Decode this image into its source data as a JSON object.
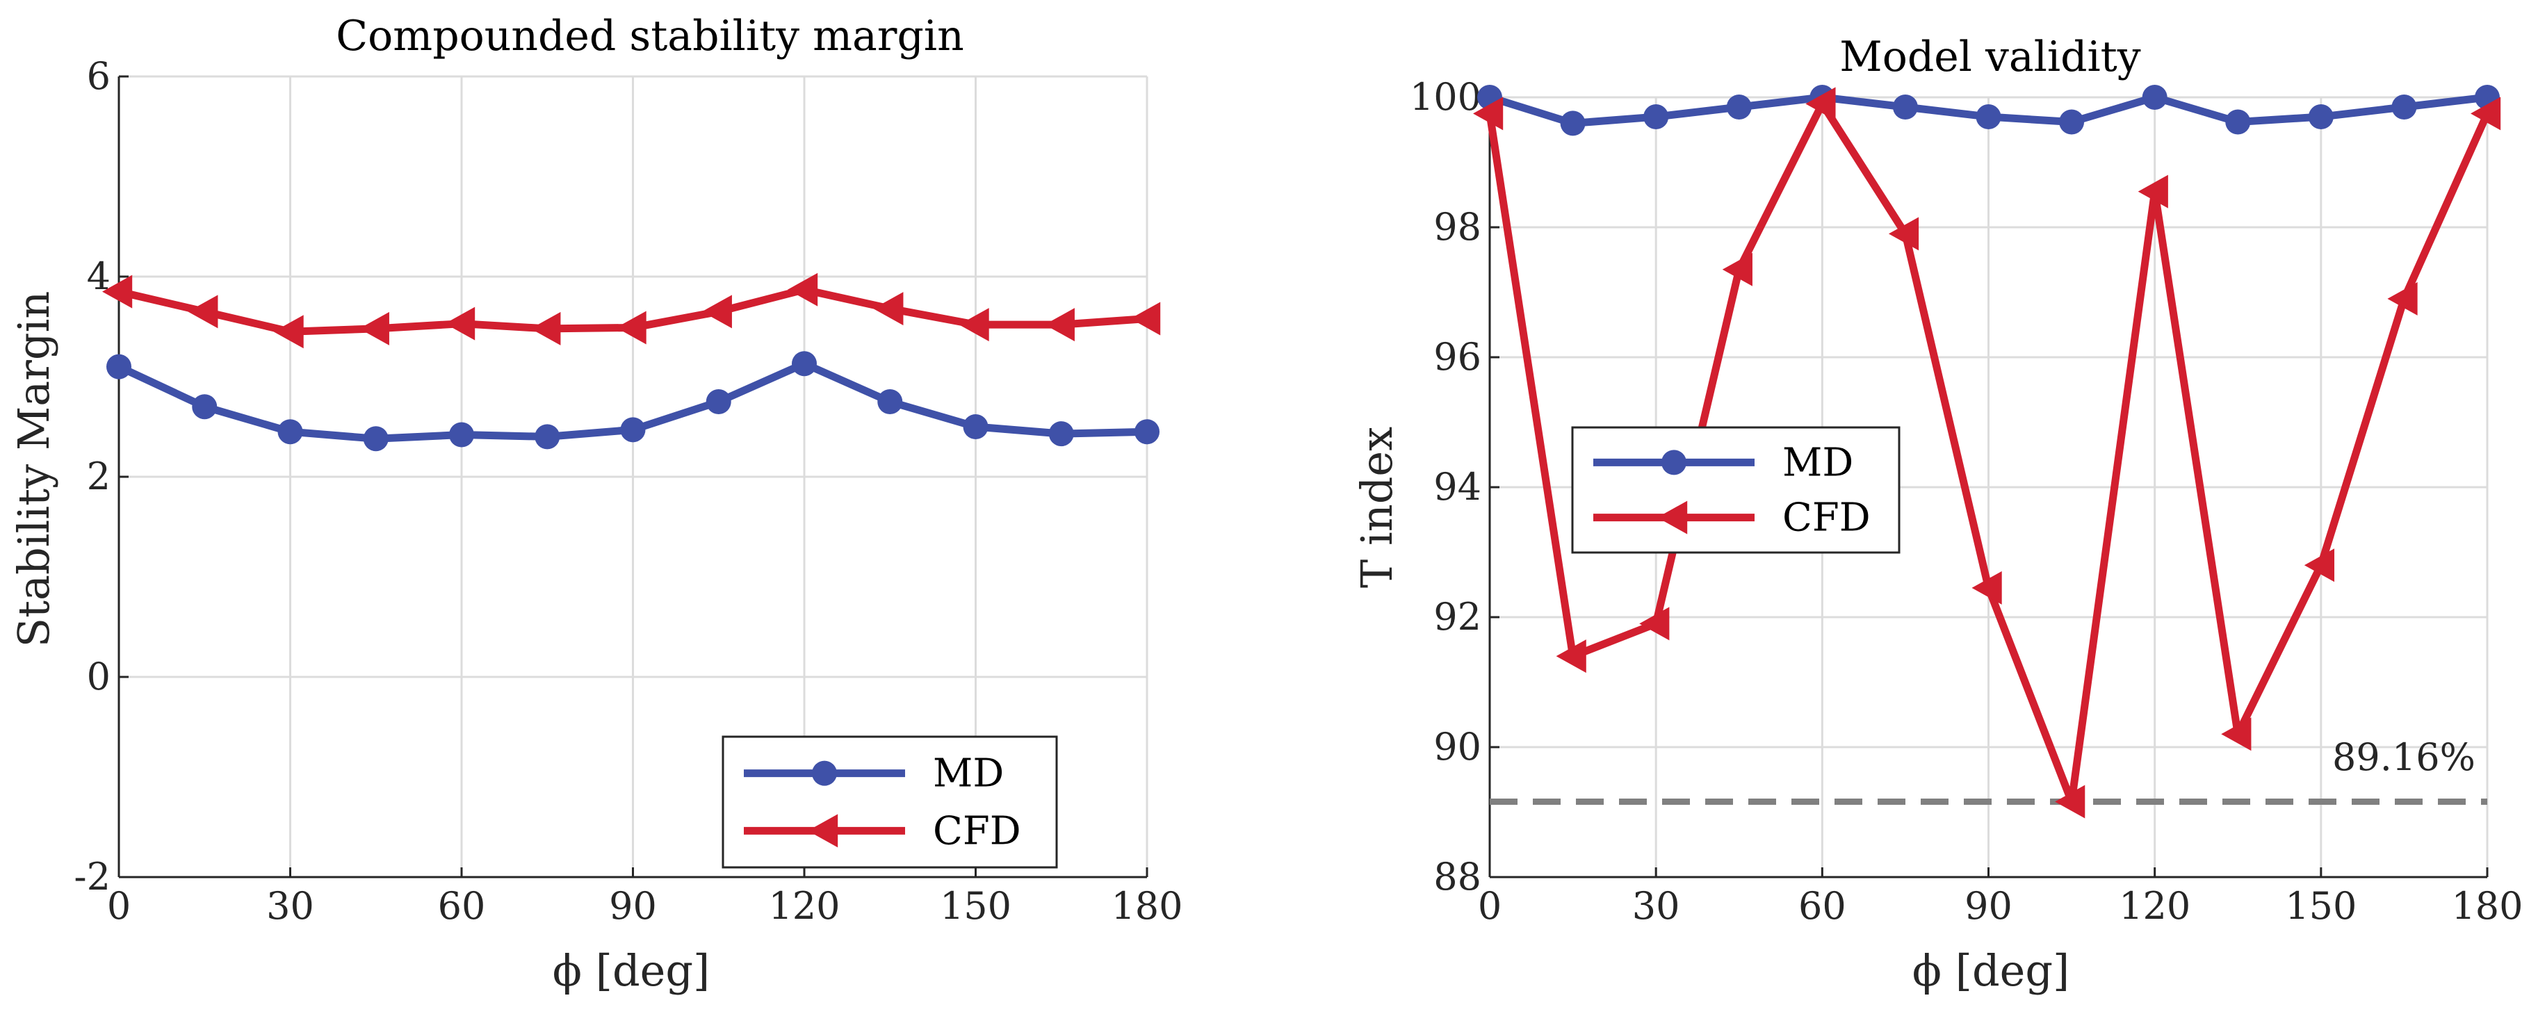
{
  "colors": {
    "md": "#3f51a8",
    "cfd": "#d21f2f",
    "grid": "#dcdcdc",
    "axis": "#262626",
    "threshold": "#808080"
  },
  "chart_data": [
    {
      "type": "line",
      "title": "Compounded stability margin",
      "xlabel": "ϕ [deg]",
      "ylabel": "Stability Margin",
      "x": [
        0,
        15,
        30,
        45,
        60,
        75,
        90,
        105,
        120,
        135,
        150,
        165,
        180
      ],
      "xlim": [
        0,
        180
      ],
      "ylim": [
        -2,
        6
      ],
      "xticks": [
        0,
        30,
        60,
        90,
        120,
        150,
        180
      ],
      "xtick_labels": [
        "0",
        "30",
        "60",
        "90",
        "120",
        "150",
        "180"
      ],
      "yticks": [
        -2,
        0,
        2,
        4,
        6
      ],
      "ytick_labels": [
        "-2",
        "0",
        "2",
        "4",
        "6"
      ],
      "grid": true,
      "legend_position": "bottom-right",
      "series": [
        {
          "name": "MD",
          "marker": "circle",
          "values": [
            3.1,
            2.7,
            2.45,
            2.38,
            2.42,
            2.4,
            2.47,
            2.75,
            3.13,
            2.75,
            2.5,
            2.43,
            2.45
          ]
        },
        {
          "name": "CFD",
          "marker": "triangle-left",
          "values": [
            3.85,
            3.65,
            3.45,
            3.48,
            3.53,
            3.48,
            3.49,
            3.65,
            3.87,
            3.68,
            3.52,
            3.52,
            3.58
          ]
        }
      ]
    },
    {
      "type": "line",
      "title": "Model validity",
      "xlabel": "ϕ [deg]",
      "ylabel": "T index",
      "x": [
        0,
        15,
        30,
        45,
        60,
        75,
        90,
        105,
        120,
        135,
        150,
        165,
        180
      ],
      "xlim": [
        0,
        180
      ],
      "ylim": [
        88,
        100
      ],
      "xticks": [
        0,
        30,
        60,
        90,
        120,
        150,
        180
      ],
      "xtick_labels": [
        "0",
        "30",
        "60",
        "90",
        "120",
        "150",
        "180"
      ],
      "yticks": [
        88,
        90,
        92,
        94,
        96,
        98,
        100
      ],
      "ytick_labels": [
        "88",
        "90",
        "92",
        "94",
        "96",
        "98",
        "100"
      ],
      "grid": true,
      "legend_position": "center-left",
      "threshold": {
        "value": 89.16,
        "label": "89.16%"
      },
      "series": [
        {
          "name": "MD",
          "marker": "circle",
          "values": [
            100,
            99.6,
            99.7,
            99.85,
            100,
            99.85,
            99.7,
            99.62,
            100,
            99.62,
            99.7,
            99.85,
            100
          ]
        },
        {
          "name": "CFD",
          "marker": "triangle-left",
          "values": [
            99.75,
            91.4,
            91.9,
            97.35,
            99.9,
            97.9,
            92.45,
            89.16,
            98.55,
            90.2,
            92.8,
            96.9,
            99.75
          ]
        }
      ]
    }
  ]
}
